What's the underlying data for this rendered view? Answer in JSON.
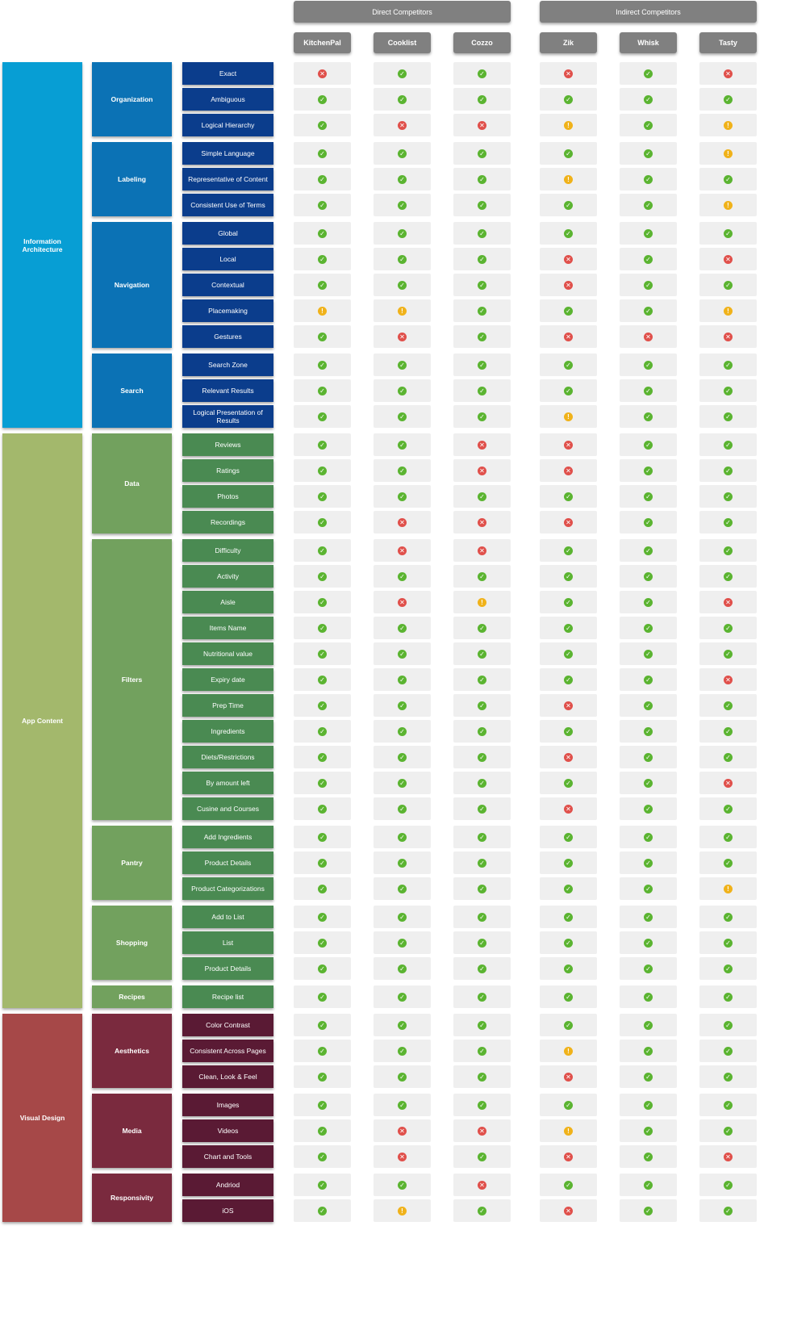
{
  "column_groups": [
    {
      "label": "Direct Competitors",
      "competitors": [
        "KitchenPal",
        "Cooklist",
        "Cozzo"
      ]
    },
    {
      "label": "Indirect Competitors",
      "competitors": [
        "Zik",
        "Whisk",
        "Tasty"
      ]
    }
  ],
  "colors": {
    "header_bg": "#808080",
    "information_architecture": {
      "l1": "#079ed4",
      "l2": "#0b72b5",
      "l3": "#0b3d8c"
    },
    "app_content": {
      "l1": "#a3b86c",
      "l2": "#72a15e",
      "l3": "#4a8a52"
    },
    "visual_design": {
      "l1": "#a64848",
      "l2": "#7a2a3e",
      "l3": "#5a1a34"
    },
    "yes": "#5bb431",
    "no": "#e0504b",
    "partial": "#f0b21a"
  },
  "legend_symbols": {
    "yes": "✓",
    "no": "✕",
    "partial": "!"
  },
  "sections": [
    {
      "label": "Information Architecture",
      "theme": "information_architecture",
      "groups": [
        {
          "label": "Organization",
          "rows": [
            {
              "label": "Exact",
              "values": [
                "no",
                "yes",
                "yes",
                "no",
                "yes",
                "no"
              ]
            },
            {
              "label": "Ambiguous",
              "values": [
                "yes",
                "yes",
                "yes",
                "yes",
                "yes",
                "yes"
              ]
            },
            {
              "label": "Logical Hierarchy",
              "values": [
                "yes",
                "no",
                "no",
                "partial",
                "yes",
                "partial"
              ]
            }
          ]
        },
        {
          "label": "Labeling",
          "rows": [
            {
              "label": "Simple Language",
              "values": [
                "yes",
                "yes",
                "yes",
                "yes",
                "yes",
                "partial"
              ]
            },
            {
              "label": "Representative of Content",
              "values": [
                "yes",
                "yes",
                "yes",
                "partial",
                "yes",
                "yes"
              ]
            },
            {
              "label": "Consistent Use of Terms",
              "values": [
                "yes",
                "yes",
                "yes",
                "yes",
                "yes",
                "partial"
              ]
            }
          ]
        },
        {
          "label": "Navigation",
          "rows": [
            {
              "label": "Global",
              "values": [
                "yes",
                "yes",
                "yes",
                "yes",
                "yes",
                "yes"
              ]
            },
            {
              "label": "Local",
              "values": [
                "yes",
                "yes",
                "yes",
                "no",
                "yes",
                "no"
              ]
            },
            {
              "label": "Contextual",
              "values": [
                "yes",
                "yes",
                "yes",
                "no",
                "yes",
                "yes"
              ]
            },
            {
              "label": "Placemaking",
              "values": [
                "partial",
                "partial",
                "yes",
                "yes",
                "yes",
                "partial"
              ]
            },
            {
              "label": "Gestures",
              "values": [
                "yes",
                "no",
                "yes",
                "no",
                "no",
                "no"
              ]
            }
          ]
        },
        {
          "label": "Search",
          "rows": [
            {
              "label": "Search Zone",
              "values": [
                "yes",
                "yes",
                "yes",
                "yes",
                "yes",
                "yes"
              ]
            },
            {
              "label": "Relevant Results",
              "values": [
                "yes",
                "yes",
                "yes",
                "yes",
                "yes",
                "yes"
              ]
            },
            {
              "label": "Logical Presentation of Results",
              "values": [
                "yes",
                "yes",
                "yes",
                "partial",
                "yes",
                "yes"
              ]
            }
          ]
        }
      ]
    },
    {
      "label": "App Content",
      "theme": "app_content",
      "groups": [
        {
          "label": "Data",
          "rows": [
            {
              "label": "Reviews",
              "values": [
                "yes",
                "yes",
                "no",
                "no",
                "yes",
                "yes"
              ]
            },
            {
              "label": "Ratings",
              "values": [
                "yes",
                "yes",
                "no",
                "no",
                "yes",
                "yes"
              ]
            },
            {
              "label": "Photos",
              "values": [
                "yes",
                "yes",
                "yes",
                "yes",
                "yes",
                "yes"
              ]
            },
            {
              "label": "Recordings",
              "values": [
                "yes",
                "no",
                "no",
                "no",
                "yes",
                "yes"
              ]
            }
          ]
        },
        {
          "label": "Filters",
          "rows": [
            {
              "label": "Difficulty",
              "values": [
                "yes",
                "no",
                "no",
                "yes",
                "yes",
                "yes"
              ]
            },
            {
              "label": "Activity",
              "values": [
                "yes",
                "yes",
                "yes",
                "yes",
                "yes",
                "yes"
              ]
            },
            {
              "label": "Aisle",
              "values": [
                "yes",
                "no",
                "partial",
                "yes",
                "yes",
                "no"
              ]
            },
            {
              "label": "Items Name",
              "values": [
                "yes",
                "yes",
                "yes",
                "yes",
                "yes",
                "yes"
              ]
            },
            {
              "label": "Nutritional value",
              "values": [
                "yes",
                "yes",
                "yes",
                "yes",
                "yes",
                "yes"
              ]
            },
            {
              "label": "Expiry date",
              "values": [
                "yes",
                "yes",
                "yes",
                "yes",
                "yes",
                "no"
              ]
            },
            {
              "label": "Prep Time",
              "values": [
                "yes",
                "yes",
                "yes",
                "no",
                "yes",
                "yes"
              ]
            },
            {
              "label": "Ingredients",
              "values": [
                "yes",
                "yes",
                "yes",
                "yes",
                "yes",
                "yes"
              ]
            },
            {
              "label": "Diets/Restrictions",
              "values": [
                "yes",
                "yes",
                "yes",
                "no",
                "yes",
                "yes"
              ]
            },
            {
              "label": "By amount left",
              "values": [
                "yes",
                "yes",
                "yes",
                "yes",
                "yes",
                "no"
              ]
            },
            {
              "label": "Cusine and Courses",
              "values": [
                "yes",
                "yes",
                "yes",
                "no",
                "yes",
                "yes"
              ]
            }
          ]
        },
        {
          "label": "Pantry",
          "rows": [
            {
              "label": "Add Ingredients",
              "values": [
                "yes",
                "yes",
                "yes",
                "yes",
                "yes",
                "yes"
              ]
            },
            {
              "label": "Product Details",
              "values": [
                "yes",
                "yes",
                "yes",
                "yes",
                "yes",
                "yes"
              ]
            },
            {
              "label": "Product Categorizations",
              "values": [
                "yes",
                "yes",
                "yes",
                "yes",
                "yes",
                "partial"
              ]
            }
          ]
        },
        {
          "label": "Shopping",
          "rows": [
            {
              "label": "Add to List",
              "values": [
                "yes",
                "yes",
                "yes",
                "yes",
                "yes",
                "yes"
              ]
            },
            {
              "label": "List",
              "values": [
                "yes",
                "yes",
                "yes",
                "yes",
                "yes",
                "yes"
              ]
            },
            {
              "label": "Product Details",
              "values": [
                "yes",
                "yes",
                "yes",
                "yes",
                "yes",
                "yes"
              ]
            }
          ]
        },
        {
          "label": "Recipes",
          "rows": [
            {
              "label": "Recipe list",
              "values": [
                "yes",
                "yes",
                "yes",
                "yes",
                "yes",
                "yes"
              ]
            }
          ]
        }
      ]
    },
    {
      "label": "Visual Design",
      "theme": "visual_design",
      "groups": [
        {
          "label": "Aesthetics",
          "rows": [
            {
              "label": "Color Contrast",
              "values": [
                "yes",
                "yes",
                "yes",
                "yes",
                "yes",
                "yes"
              ]
            },
            {
              "label": "Consistent Across Pages",
              "values": [
                "yes",
                "yes",
                "yes",
                "partial",
                "yes",
                "yes"
              ]
            },
            {
              "label": "Clean, Look & Feel",
              "values": [
                "yes",
                "yes",
                "yes",
                "no",
                "yes",
                "yes"
              ]
            }
          ]
        },
        {
          "label": "Media",
          "rows": [
            {
              "label": "Images",
              "values": [
                "yes",
                "yes",
                "yes",
                "yes",
                "yes",
                "yes"
              ]
            },
            {
              "label": "Videos",
              "values": [
                "yes",
                "no",
                "no",
                "partial",
                "yes",
                "yes"
              ]
            },
            {
              "label": "Chart and Tools",
              "values": [
                "yes",
                "no",
                "yes",
                "no",
                "yes",
                "no"
              ]
            }
          ]
        },
        {
          "label": "Responsivity",
          "rows": [
            {
              "label": "Andriod",
              "values": [
                "yes",
                "yes",
                "no",
                "yes",
                "yes",
                "yes"
              ]
            },
            {
              "label": "iOS",
              "values": [
                "yes",
                "partial",
                "yes",
                "no",
                "yes",
                "yes"
              ]
            }
          ]
        }
      ]
    }
  ]
}
